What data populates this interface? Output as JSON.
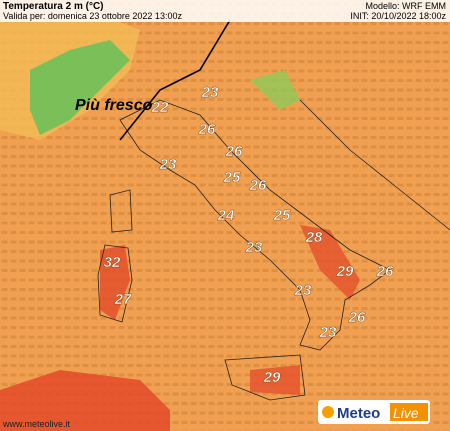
{
  "header": {
    "title": "Temperatura 2 m (°C)",
    "valid": "Valida per: domenica 23 ottobre 2022 13:00z",
    "model": "Modello: WRF EMM",
    "init": "INIT: 20/10/2022 18:00z"
  },
  "annotation": "Più fresco",
  "temperature_labels": [
    23,
    22,
    26,
    26,
    23,
    25,
    26,
    24,
    25,
    23,
    28,
    32,
    29,
    26,
    27,
    23,
    26,
    23,
    29
  ],
  "footer": {
    "url": "www.meteolive.it",
    "logo_left": "Meteo",
    "logo_right": "Live"
  }
}
